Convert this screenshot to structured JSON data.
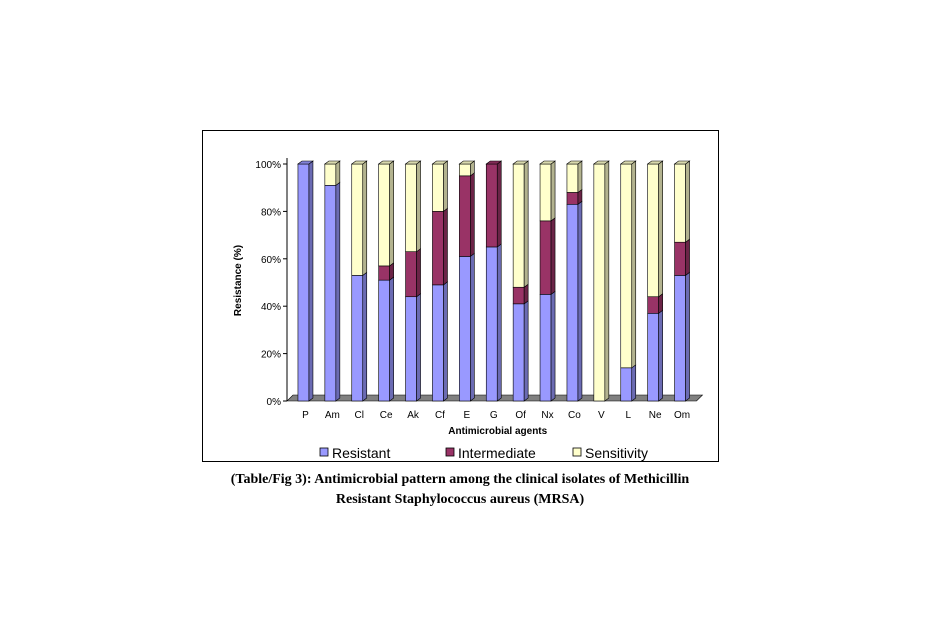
{
  "caption": {
    "line1": "(Table/Fig 3): Antimicrobial pattern among the clinical isolates of Methicillin",
    "line2": "Resistant Staphylococcus aureus (MRSA)"
  },
  "chart_data": {
    "type": "bar",
    "stacked": true,
    "percent_stacked": true,
    "three_d": true,
    "xlabel": "Antimicrobial agents",
    "ylabel": "Resistance (%)",
    "ylim": [
      0,
      100
    ],
    "yticks": [
      "0%",
      "20%",
      "40%",
      "60%",
      "80%",
      "100%"
    ],
    "legend_position": "bottom",
    "grid": false,
    "categories": [
      "P",
      "Am",
      "Cl",
      "Ce",
      "Ak",
      "Cf",
      "E",
      "G",
      "Of",
      "Nx",
      "Co",
      "V",
      "L",
      "Ne",
      "Om"
    ],
    "series": [
      {
        "name": "Resistant",
        "color": "#9999ff",
        "values": [
          100,
          91,
          53,
          51,
          44,
          49,
          61,
          65,
          41,
          45,
          83,
          0,
          14,
          37,
          53
        ]
      },
      {
        "name": "Intermediate",
        "color": "#993366",
        "values": [
          0,
          0,
          0,
          6,
          19,
          31,
          34,
          35,
          7,
          31,
          5,
          0,
          0,
          7,
          14
        ]
      },
      {
        "name": "Sensitivity",
        "color": "#ffffcc",
        "values": [
          0,
          9,
          47,
          43,
          37,
          20,
          5,
          0,
          52,
          24,
          12,
          100,
          86,
          56,
          33
        ]
      }
    ]
  }
}
